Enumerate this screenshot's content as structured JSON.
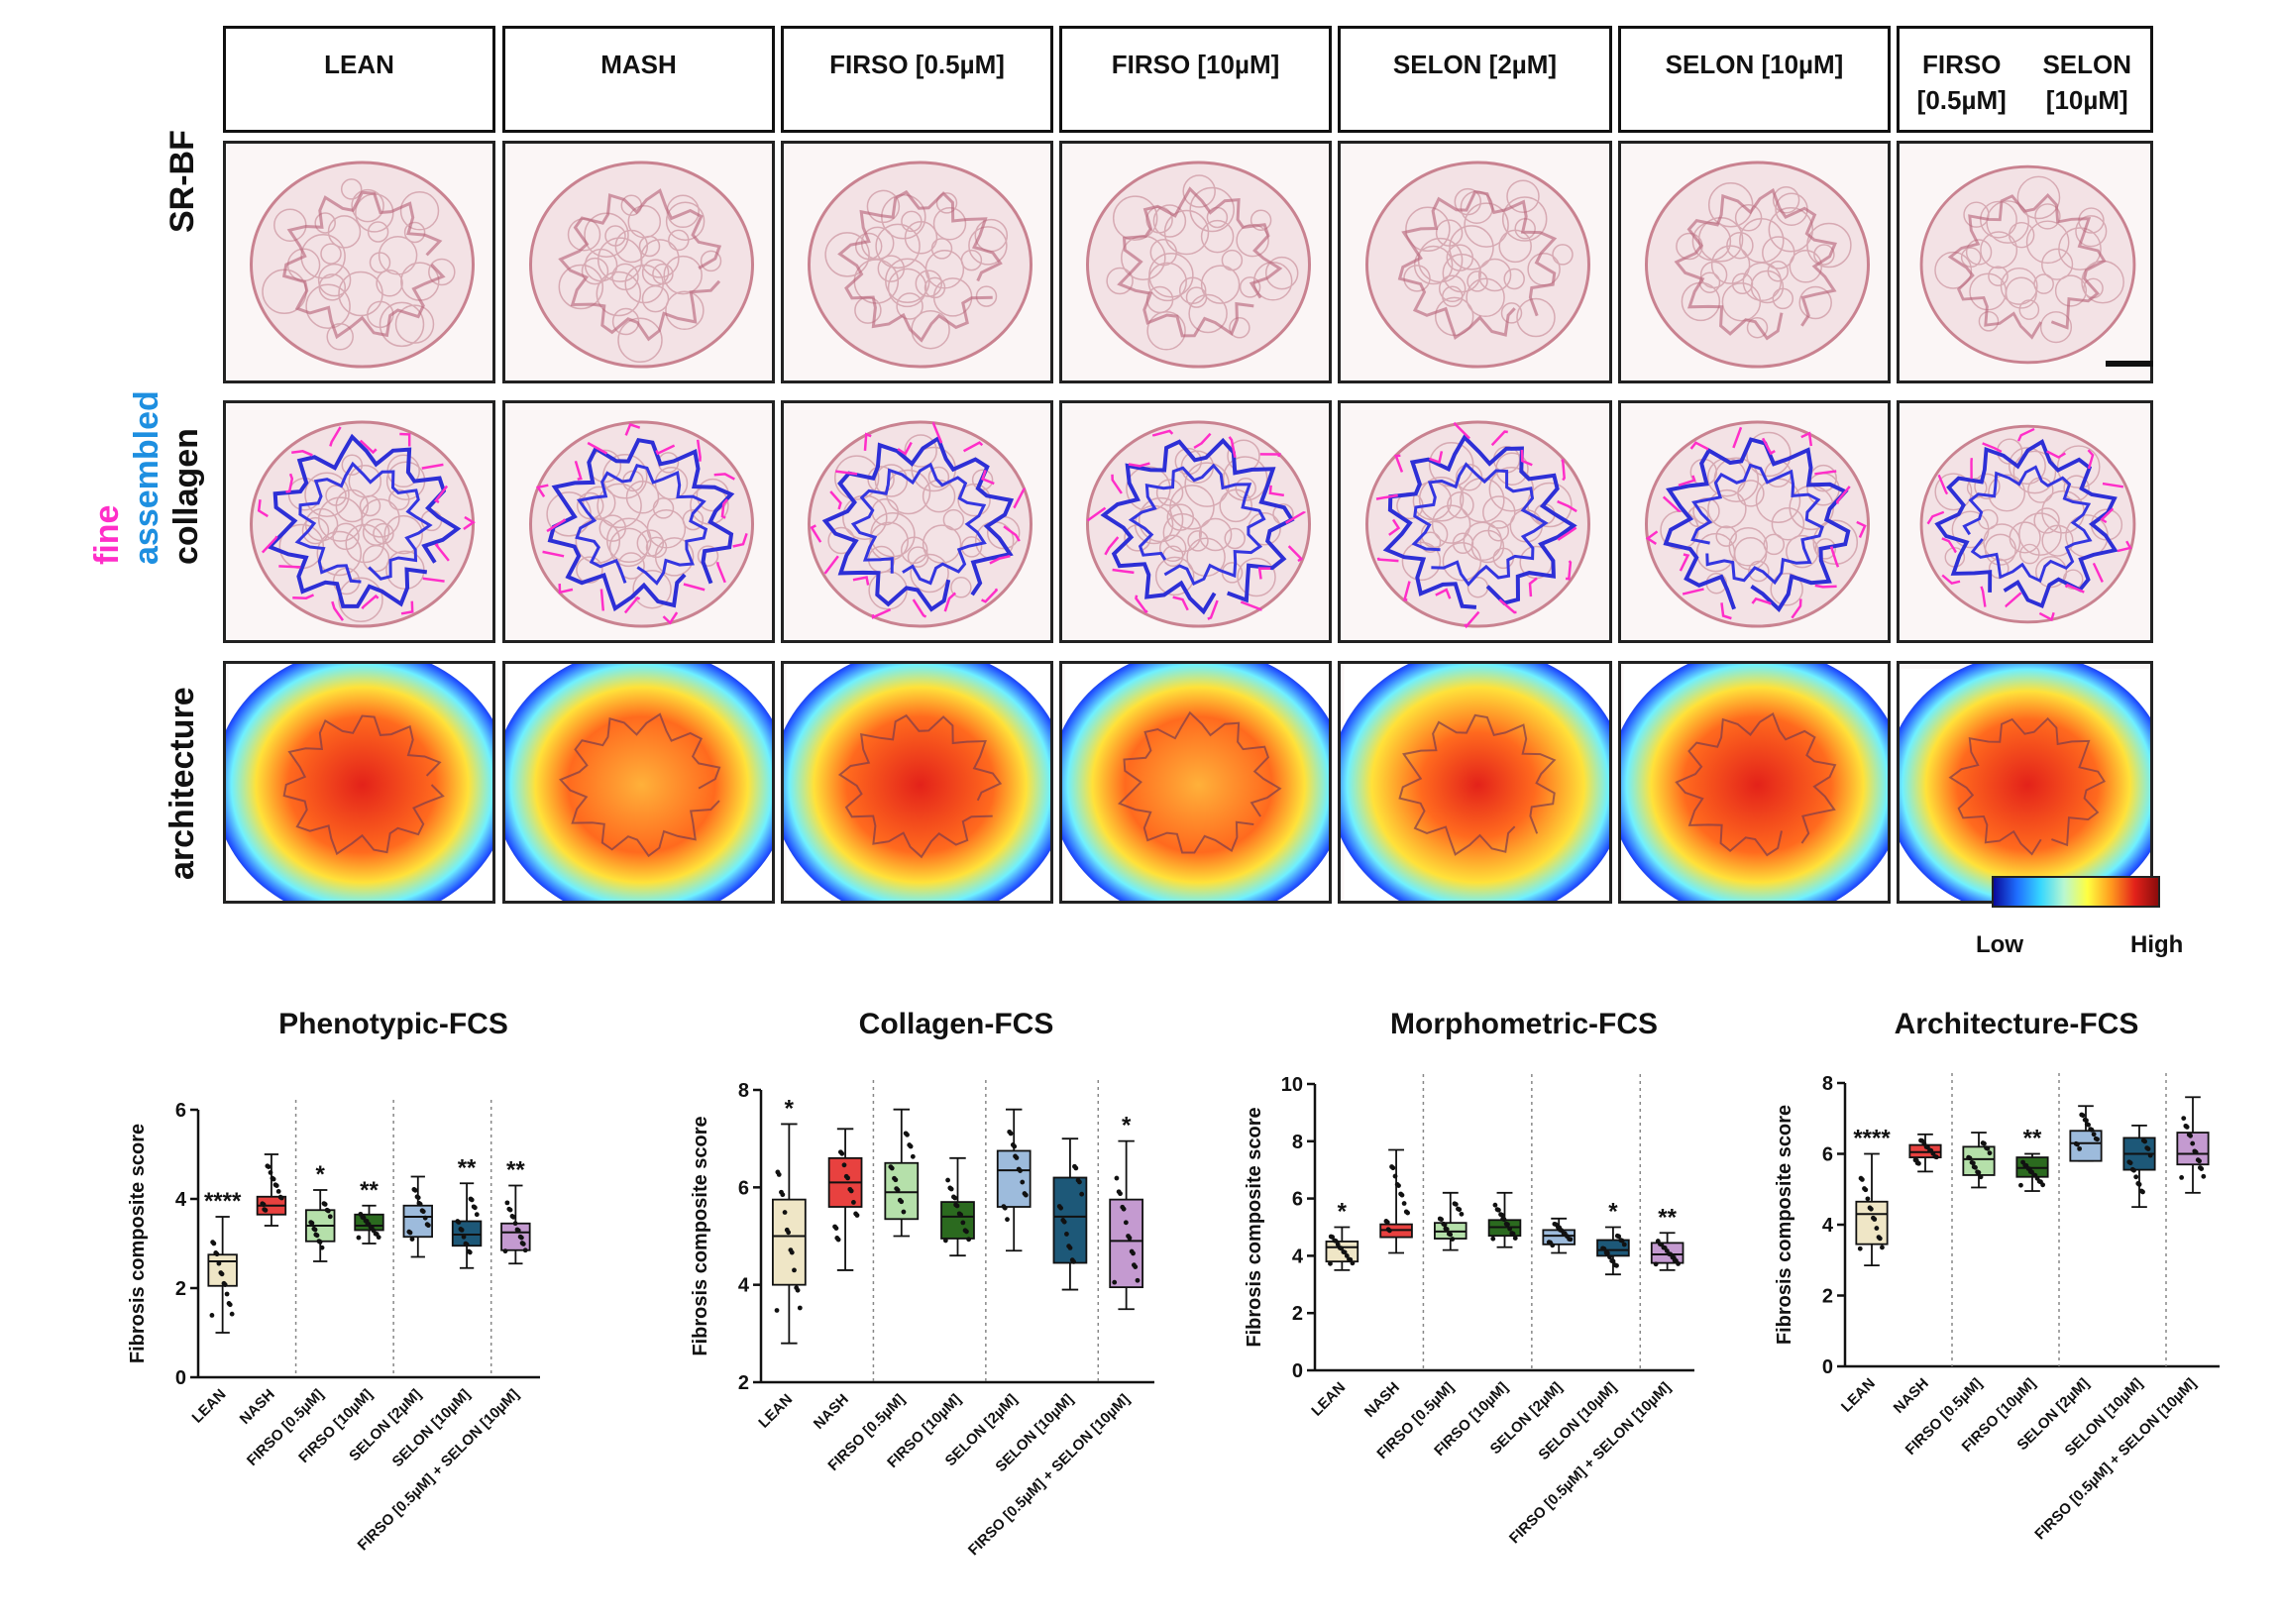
{
  "columns": [
    "LEAN",
    "MASH",
    "FIRSO [0.5µM]",
    "FIRSO [10µM]",
    "SELON [2µM]",
    "SELON [10µM]",
    "FIRSO [0.5µM]\nSELON [10µM]"
  ],
  "row_labels": {
    "srbf": "SR-BF",
    "collagen_fine": "fine",
    "collagen_assembled": "assembled",
    "collagen": "collagen",
    "architecture": "architecture"
  },
  "colorbar": {
    "low": "Low",
    "high": "High",
    "colors": [
      "#0a0a9a",
      "#1e6fff",
      "#36d7ff",
      "#ffff40",
      "#ff9a1e",
      "#e3221a",
      "#8a0c0c"
    ]
  },
  "colors": {
    "fine": "#ff2ec8",
    "assembled": "#1e8fe0",
    "tile_stain": "#c98290"
  },
  "chart_data": [
    {
      "type": "box",
      "title": "Phenotypic-FCS",
      "ylabel": "Fibrosis composite score",
      "ylim": [
        0,
        6
      ],
      "yticks": [
        0,
        2,
        4,
        6
      ],
      "categories": [
        "LEAN",
        "NASH",
        "FIRSO [0.5µM]",
        "FIRSO [10µM]",
        "SELON [2µM]",
        "SELON [10µM]",
        "FIRSO [0.5µM] + SELON [10µM]"
      ],
      "colors": [
        "#efe6c6",
        "#e8413f",
        "#b5e0aa",
        "#2b6a1f",
        "#9dbbdc",
        "#1d5878",
        "#c49ad0"
      ],
      "boxes": [
        {
          "min": 1.0,
          "q1": 2.05,
          "median": 2.6,
          "q3": 2.75,
          "max": 3.6
        },
        {
          "min": 3.4,
          "q1": 3.65,
          "median": 3.85,
          "q3": 4.05,
          "max": 5.0
        },
        {
          "min": 2.6,
          "q1": 3.05,
          "median": 3.4,
          "q3": 3.75,
          "max": 4.2
        },
        {
          "min": 3.0,
          "q1": 3.3,
          "median": 3.4,
          "q3": 3.65,
          "max": 3.85
        },
        {
          "min": 2.7,
          "q1": 3.15,
          "median": 3.6,
          "q3": 3.85,
          "max": 4.5
        },
        {
          "min": 2.45,
          "q1": 2.95,
          "median": 3.2,
          "q3": 3.5,
          "max": 4.35
        },
        {
          "min": 2.55,
          "q1": 2.85,
          "median": 3.25,
          "q3": 3.45,
          "max": 4.3
        }
      ],
      "stars": [
        "****",
        "",
        "*",
        "**",
        "",
        "**",
        "**"
      ],
      "dividers_after": [
        1,
        3,
        5
      ]
    },
    {
      "type": "box",
      "title": "Collagen-FCS",
      "ylabel": "Fibrosis composite score",
      "ylim": [
        2,
        8
      ],
      "yticks": [
        2,
        4,
        6,
        8
      ],
      "categories": [
        "LEAN",
        "NASH",
        "FIRSO [0.5µM]",
        "FIRSO [10µM]",
        "SELON [2µM]",
        "SELON [10µM]",
        "FIRSO [0.5µM] + SELON [10µM]"
      ],
      "colors": [
        "#efe6c6",
        "#e8413f",
        "#b5e0aa",
        "#2b6a1f",
        "#9dbbdc",
        "#1d5878",
        "#c49ad0"
      ],
      "boxes": [
        {
          "min": 2.8,
          "q1": 4.0,
          "median": 5.0,
          "q3": 5.75,
          "max": 7.3
        },
        {
          "min": 4.3,
          "q1": 5.6,
          "median": 6.1,
          "q3": 6.6,
          "max": 7.2
        },
        {
          "min": 5.0,
          "q1": 5.35,
          "median": 5.9,
          "q3": 6.5,
          "max": 7.6
        },
        {
          "min": 4.6,
          "q1": 4.95,
          "median": 5.4,
          "q3": 5.7,
          "max": 6.6
        },
        {
          "min": 4.7,
          "q1": 5.6,
          "median": 6.35,
          "q3": 6.75,
          "max": 7.6
        },
        {
          "min": 3.9,
          "q1": 4.45,
          "median": 5.4,
          "q3": 6.2,
          "max": 7.0
        },
        {
          "min": 3.5,
          "q1": 3.95,
          "median": 4.9,
          "q3": 5.75,
          "max": 6.95
        }
      ],
      "stars": [
        "*",
        "",
        "",
        "",
        "",
        "",
        "*"
      ],
      "dividers_after": [
        1,
        3,
        5
      ]
    },
    {
      "type": "box",
      "title": "Morphometric-FCS",
      "ylabel": "Fibrosis composite score",
      "ylim": [
        0,
        10
      ],
      "yticks": [
        0,
        2,
        4,
        6,
        8,
        10
      ],
      "categories": [
        "LEAN",
        "NASH",
        "FIRSO [0.5µM]",
        "FIRSO [10µM]",
        "SELON [2µM]",
        "SELON [10µM]",
        "FIRSO [0.5µM] + SELON [10µM]"
      ],
      "colors": [
        "#efe6c6",
        "#e8413f",
        "#b5e0aa",
        "#2b6a1f",
        "#9dbbdc",
        "#1d5878",
        "#c49ad0"
      ],
      "boxes": [
        {
          "min": 3.5,
          "q1": 3.8,
          "median": 4.3,
          "q3": 4.5,
          "max": 5.0
        },
        {
          "min": 4.1,
          "q1": 4.65,
          "median": 4.9,
          "q3": 5.1,
          "max": 7.7
        },
        {
          "min": 4.2,
          "q1": 4.6,
          "median": 4.85,
          "q3": 5.15,
          "max": 6.2
        },
        {
          "min": 4.3,
          "q1": 4.7,
          "median": 5.0,
          "q3": 5.25,
          "max": 6.2
        },
        {
          "min": 4.1,
          "q1": 4.4,
          "median": 4.7,
          "q3": 4.9,
          "max": 5.3
        },
        {
          "min": 3.35,
          "q1": 4.0,
          "median": 4.2,
          "q3": 4.55,
          "max": 5.0
        },
        {
          "min": 3.5,
          "q1": 3.75,
          "median": 4.05,
          "q3": 4.45,
          "max": 4.8
        }
      ],
      "stars": [
        "*",
        "",
        "",
        "",
        "",
        "*",
        "**"
      ],
      "dividers_after": [
        1,
        3,
        5
      ]
    },
    {
      "type": "box",
      "title": "Architecture-FCS",
      "ylabel": "Fibrosis composite score",
      "ylim": [
        0,
        8
      ],
      "yticks": [
        0,
        2,
        4,
        6,
        8
      ],
      "categories": [
        "LEAN",
        "NASH",
        "FIRSO [0.5µM]",
        "FIRSO [10µM]",
        "SELON [2µM]",
        "SELON [10µM]",
        "FIRSO [0.5µM] + SELON [10µM]"
      ],
      "colors": [
        "#efe6c6",
        "#e8413f",
        "#b5e0aa",
        "#2b6a1f",
        "#9dbbdc",
        "#1d5878",
        "#c49ad0"
      ],
      "boxes": [
        {
          "min": 2.85,
          "q1": 3.45,
          "median": 4.3,
          "q3": 4.65,
          "max": 6.0
        },
        {
          "min": 5.5,
          "q1": 5.9,
          "median": 6.05,
          "q3": 6.25,
          "max": 6.55
        },
        {
          "min": 5.05,
          "q1": 5.4,
          "median": 5.85,
          "q3": 6.2,
          "max": 6.6
        },
        {
          "min": 4.95,
          "q1": 5.35,
          "median": 5.6,
          "q3": 5.9,
          "max": 6.0
        },
        {
          "min": 5.8,
          "q1": 5.8,
          "median": 6.3,
          "q3": 6.65,
          "max": 7.35
        },
        {
          "min": 4.5,
          "q1": 5.55,
          "median": 6.0,
          "q3": 6.45,
          "max": 6.8
        },
        {
          "min": 4.9,
          "q1": 5.7,
          "median": 6.0,
          "q3": 6.6,
          "max": 7.6
        }
      ],
      "stars": [
        "****",
        "",
        "",
        "**",
        "",
        "",
        ""
      ],
      "dividers_after": [
        1,
        3,
        5
      ]
    }
  ]
}
